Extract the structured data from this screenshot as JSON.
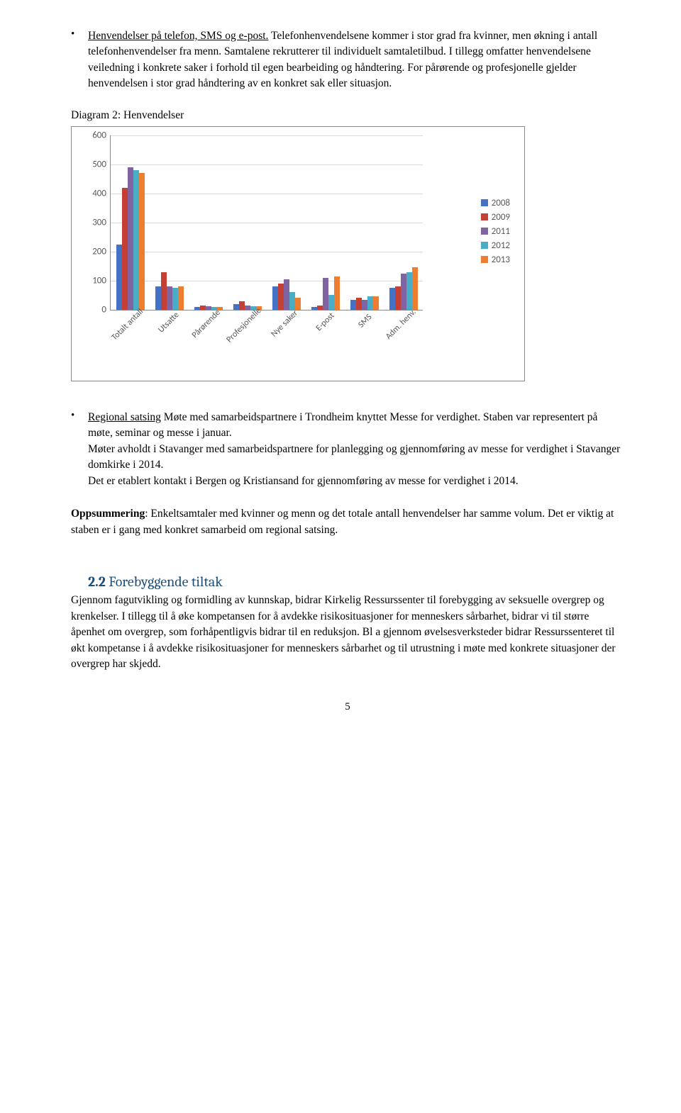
{
  "bullet1": {
    "title": "Henvendelser på telefon, SMS og e-post.",
    "body": " Telefonhenvendelsene kommer i stor grad fra kvinner, men økning i antall telefonhenvendelser fra menn. Samtalene rekrutterer til individuelt samtaletilbud. I tillegg omfatter henvendelsene veiledning i konkrete saker i forhold til egen bearbeiding og håndtering. For pårørende og profesjonelle gjelder henvendelsen i stor grad håndtering av en konkret sak eller situasjon."
  },
  "chart": {
    "title": "Diagram 2: Henvendelser",
    "type": "bar",
    "ylim": [
      0,
      600
    ],
    "ytick_step": 100,
    "categories": [
      "Totalt antall",
      "Utsatte",
      "Pårørende",
      "Profesjonelle",
      "Nye saker",
      "E-post",
      "SMS",
      "Adm. henv."
    ],
    "series": [
      {
        "label": "2008",
        "color": "#4472c4",
        "values": [
          225,
          80,
          10,
          20,
          80,
          10,
          35,
          75
        ]
      },
      {
        "label": "2009",
        "color": "#c44034",
        "values": [
          420,
          130,
          15,
          30,
          90,
          15,
          40,
          80
        ]
      },
      {
        "label": "2011",
        "color": "#8064a2",
        "values": [
          490,
          80,
          12,
          14,
          105,
          110,
          35,
          125
        ]
      },
      {
        "label": "2012",
        "color": "#4bacc6",
        "values": [
          480,
          75,
          10,
          12,
          60,
          50,
          45,
          130
        ]
      },
      {
        "label": "2013",
        "color": "#ed7d31",
        "values": [
          470,
          80,
          10,
          12,
          40,
          115,
          45,
          145
        ]
      }
    ],
    "grid_color": "#d9d9d9",
    "axis_color": "#888888",
    "background_color": "#ffffff",
    "label_fontsize": 12,
    "tick_fontsize": 13
  },
  "bullet2": {
    "title": "Regional satsing",
    "body": " Møte med samarbeidspartnere i Trondheim knyttet Messe for verdighet. Staben var representert på møte, seminar og messe i januar.\nMøter avholdt i Stavanger med samarbeidspartnere for planlegging og gjennomføring av messe for verdighet i Stavanger domkirke i 2014.\nDet er etablert kontakt i Bergen og Kristiansand for gjennomføring av messe for verdighet i 2014."
  },
  "oppsummering": {
    "label": "Oppsummering",
    "body": ": Enkeltsamtaler med kvinner og menn og det totale antall henvendelser har samme volum. Det er viktig at staben er i gang med konkret samarbeid om regional satsing."
  },
  "section": {
    "number": "2.2",
    "heading": "Forebyggende tiltak",
    "body": "Gjennom fagutvikling og formidling av kunnskap, bidrar Kirkelig Ressurssenter til forebygging av seksuelle overgrep og krenkelser. I tillegg til å øke kompetansen for å avdekke risikosituasjoner for menneskers sårbarhet, bidrar vi til større åpenhet om overgrep, som forhåpentligvis bidrar til en reduksjon. Bl a gjennom øvelsesverksteder bidrar Ressurssenteret til økt kompetanse i å avdekke risikosituasjoner for menneskers sårbarhet og til utrustning i møte med konkrete situasjoner der overgrep har skjedd."
  },
  "page_number": "5"
}
